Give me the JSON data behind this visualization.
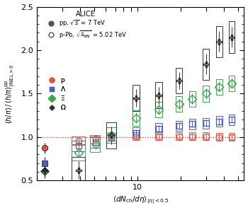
{
  "title": "ALICE",
  "xlabel": "$\\langle dN_{\\rm ch}/d\\eta \\rangle_{|\\eta|< 0.5}$",
  "ylabel": "$(h/\\pi)\\,/\\,(h/\\pi)^{\\rm pp}_{|{\\rm INEL}>0}$",
  "xlim": [
    2.0,
    55
  ],
  "ylim": [
    0.5,
    2.5
  ],
  "dotted_line_y": 1.0,
  "pp_label": "pp, $\\sqrt{s}$ = 7 TeV",
  "pPb_label": "p-Pb, $\\sqrt{s_{\\rm NN}}$ = 5.02 TeV",
  "colors": {
    "p": "#e05540",
    "Lambda": "#5060b8",
    "Xi": "#38a848",
    "Omega": "#303030"
  },
  "pp_data": {
    "p": {
      "x": [
        2.26
      ],
      "y": [
        0.875
      ],
      "xerr": [
        0.0
      ],
      "yerr": [
        0.04
      ]
    },
    "Lambda": {
      "x": [
        2.26
      ],
      "y": [
        0.695
      ],
      "xerr": [
        0.0
      ],
      "yerr": [
        0.05
      ]
    },
    "Xi": {
      "x": [
        2.26
      ],
      "y": [
        0.61
      ],
      "xerr": [
        0.0
      ],
      "yerr": [
        0.04
      ]
    },
    "Omega": {
      "x": [
        2.26
      ],
      "y": [
        0.62
      ],
      "xerr": [
        0.0
      ],
      "yerr": [
        0.06
      ]
    }
  },
  "pPb_data": {
    "p": {
      "x": [
        3.9,
        5.1,
        6.6,
        9.8,
        14.0,
        19.5,
        24.0,
        30.0,
        37.0,
        45.0
      ],
      "y": [
        0.96,
        0.98,
        1.0,
        1.01,
        1.01,
        1.01,
        1.01,
        1.01,
        1.0,
        1.0
      ],
      "xerr": [
        0.4,
        0.4,
        0.5,
        0.6,
        0.8,
        1.0,
        1.2,
        1.5,
        1.8,
        2.0
      ],
      "yerr": [
        0.03,
        0.03,
        0.03,
        0.03,
        0.03,
        0.03,
        0.03,
        0.03,
        0.03,
        0.03
      ]
    },
    "Lambda": {
      "x": [
        3.9,
        5.1,
        6.6,
        9.8,
        14.0,
        19.5,
        24.0,
        30.0,
        37.0,
        45.0
      ],
      "y": [
        0.9,
        0.94,
        0.99,
        1.05,
        1.1,
        1.13,
        1.15,
        1.16,
        1.18,
        1.2
      ],
      "xerr": [
        0.4,
        0.4,
        0.5,
        0.6,
        0.8,
        1.0,
        1.2,
        1.5,
        1.8,
        2.0
      ],
      "yerr": [
        0.04,
        0.04,
        0.04,
        0.04,
        0.04,
        0.04,
        0.04,
        0.04,
        0.04,
        0.04
      ]
    },
    "Xi": {
      "x": [
        3.9,
        5.1,
        6.6,
        9.8,
        14.0,
        19.5,
        24.0,
        30.0,
        37.0,
        45.0
      ],
      "y": [
        0.82,
        0.92,
        1.02,
        1.22,
        1.32,
        1.38,
        1.44,
        1.5,
        1.58,
        1.62
      ],
      "xerr": [
        0.4,
        0.4,
        0.5,
        0.6,
        0.8,
        1.0,
        1.2,
        1.5,
        1.8,
        2.0
      ],
      "yerr": [
        0.06,
        0.06,
        0.06,
        0.06,
        0.06,
        0.06,
        0.06,
        0.06,
        0.06,
        0.06
      ]
    },
    "Omega": {
      "x": [
        3.9,
        6.6,
        9.8,
        14.0,
        19.5,
        30.0,
        37.0,
        45.0
      ],
      "y": [
        0.62,
        1.02,
        1.45,
        1.48,
        1.65,
        1.84,
        2.1,
        2.15
      ],
      "xerr": [
        0.4,
        0.5,
        0.6,
        0.8,
        1.0,
        1.5,
        1.8,
        2.0
      ],
      "yerr": [
        0.1,
        0.1,
        0.1,
        0.1,
        0.1,
        0.12,
        0.12,
        0.12
      ]
    }
  }
}
